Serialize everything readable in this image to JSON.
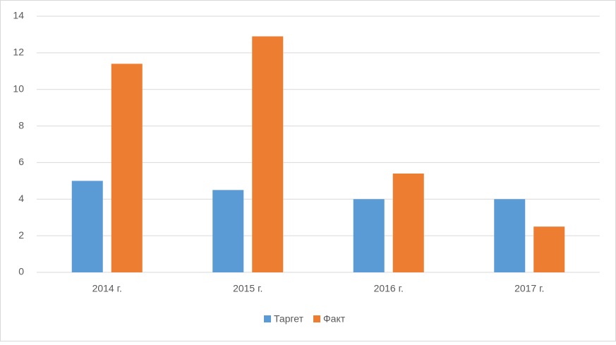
{
  "chart_data": {
    "type": "bar",
    "categories": [
      "2014 г.",
      "2015 г.",
      "2016 г.",
      "2017 г."
    ],
    "series": [
      {
        "name": "Таргет",
        "color": "#5b9bd5",
        "values": [
          5,
          4.5,
          4,
          4
        ]
      },
      {
        "name": "Факт",
        "color": "#ed7d31",
        "values": [
          11.4,
          12.9,
          5.4,
          2.5
        ]
      }
    ],
    "ylim": [
      0,
      14
    ],
    "yticks": [
      0,
      2,
      4,
      6,
      8,
      10,
      12,
      14
    ],
    "grid": true,
    "legend": "bottom"
  }
}
